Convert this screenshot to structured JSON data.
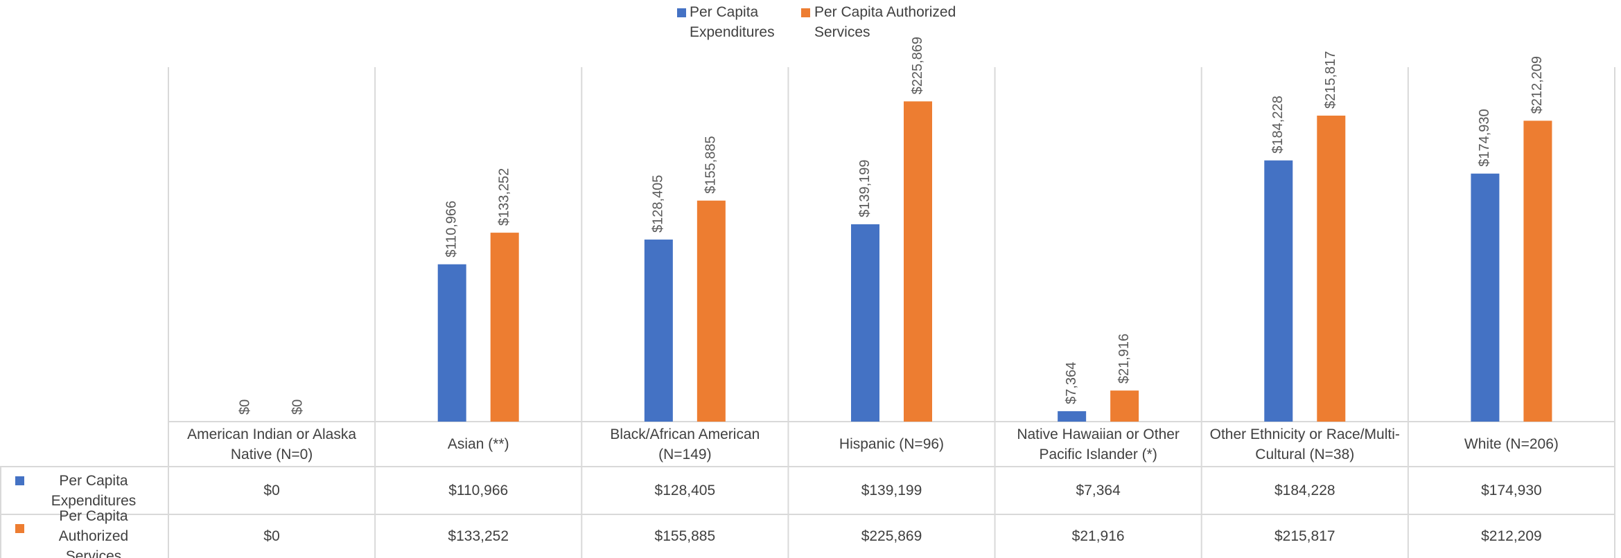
{
  "chart_data": {
    "type": "bar",
    "categories": [
      "American Indian or Alaska Native (N=0)",
      "Asian (**)",
      "Black/African American (N=149)",
      "Hispanic (N=96)",
      "Native Hawaiian or Other Pacific Islander (*)",
      "Other Ethnicity or Race/Multi-Cultural (N=38)",
      "White (N=206)"
    ],
    "series": [
      {
        "name": "Per Capita Expenditures",
        "color": "#4472c4",
        "values": [
          0,
          110966,
          128405,
          139199,
          7364,
          184228,
          174930
        ],
        "value_labels": [
          "$0",
          "$110,966",
          "$128,405",
          "$139,199",
          "$7,364",
          "$184,228",
          "$174,930"
        ]
      },
      {
        "name": "Per Capita Authorized Services",
        "color": "#ed7d31",
        "values": [
          0,
          133252,
          155885,
          225869,
          21916,
          215817,
          212209
        ],
        "value_labels": [
          "$0",
          "$133,252",
          "$155,885",
          "$225,869",
          "$21,916",
          "$215,817",
          "$212,209"
        ]
      }
    ],
    "ylim": [
      0,
      250000
    ]
  }
}
